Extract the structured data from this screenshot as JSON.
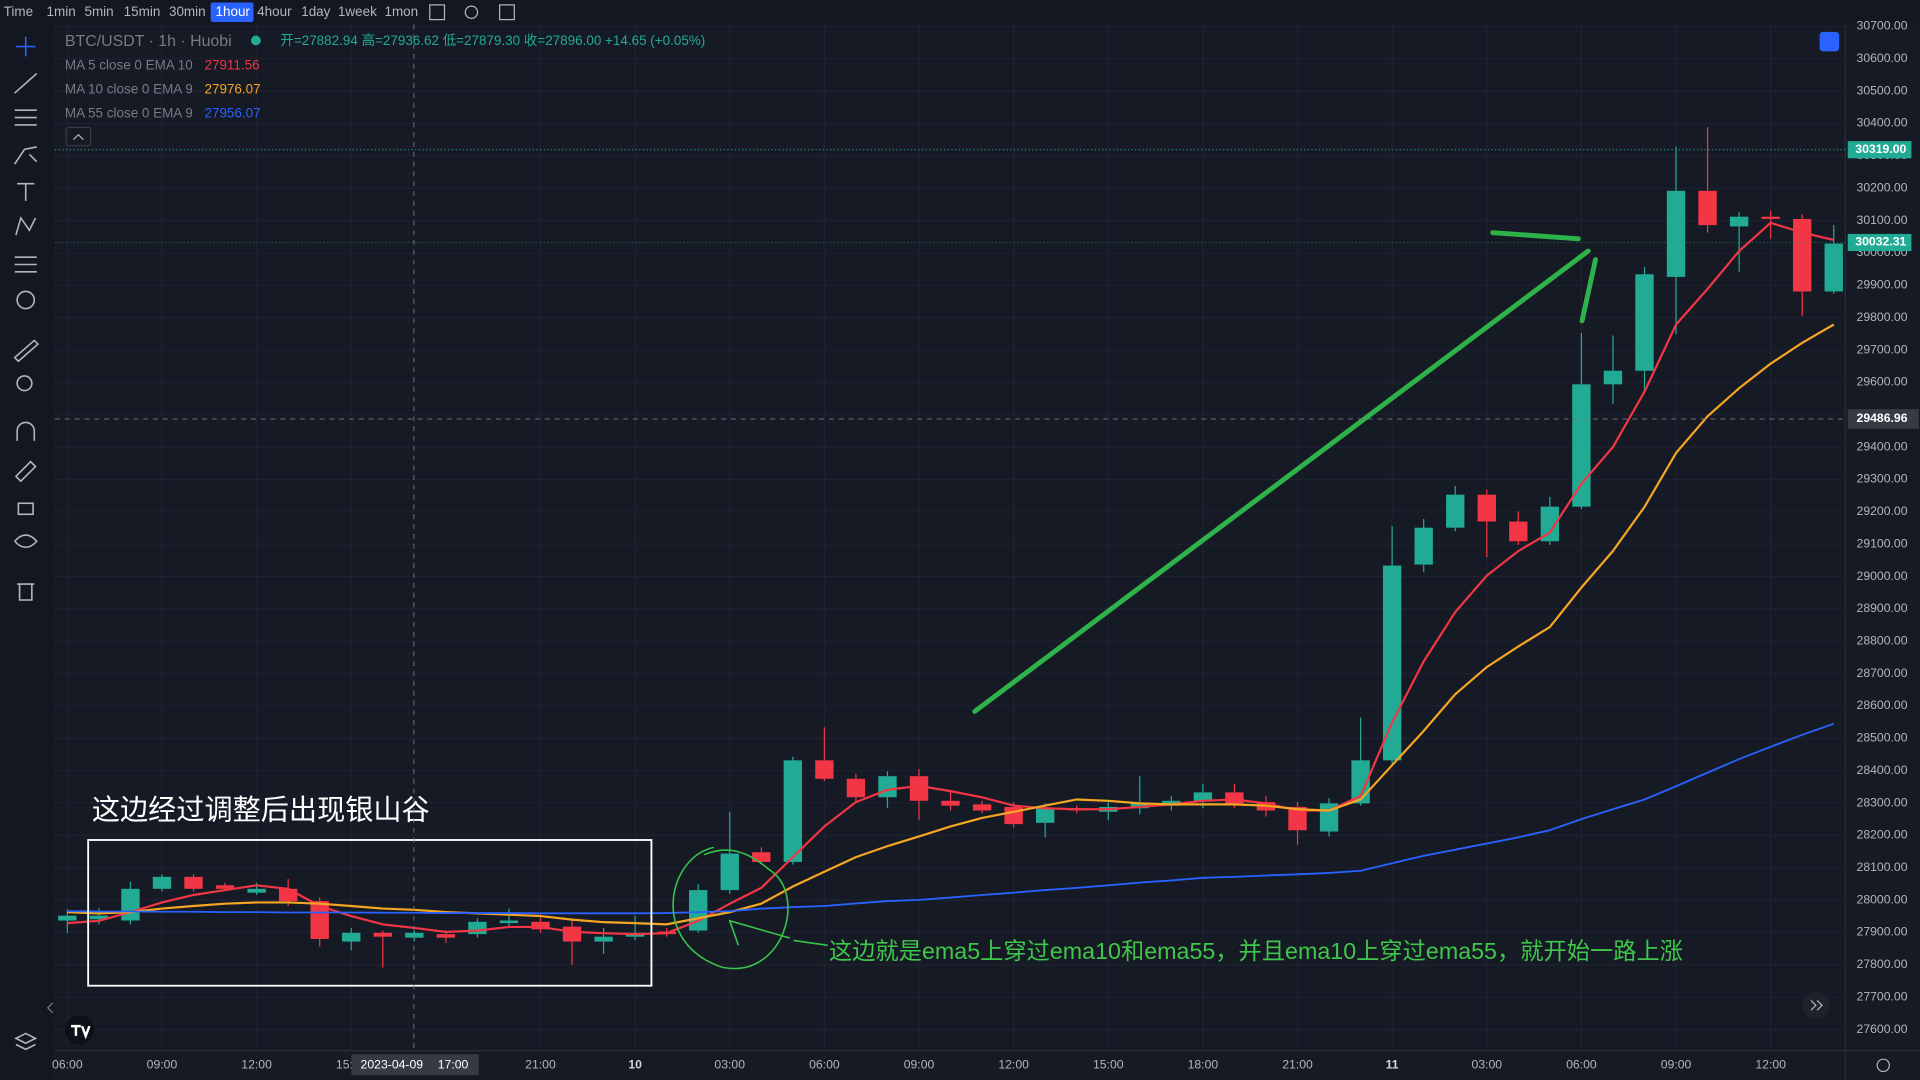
{
  "toolbar": {
    "items": [
      "Time",
      "1min",
      "5min",
      "15min",
      "30min",
      "1hour",
      "4hour",
      "1day",
      "1week",
      "1mon"
    ],
    "active": "1hour"
  },
  "chart_data": {
    "type": "candlestick",
    "symbol": "BTC/USDT · 1h · Huobi",
    "ohlc_readout": "开=27882.94 高=27936.62 低=27879.30 收=27896.00 +14.65 (+0.05%)",
    "categories": [
      "06:00",
      null,
      null,
      "09:00",
      null,
      null,
      "12:00",
      null,
      null,
      "15:00",
      null,
      null,
      null,
      null,
      null,
      "21:00",
      null,
      null,
      "10",
      null,
      null,
      "03:00",
      null,
      null,
      "06:00",
      null,
      null,
      "09:00",
      null,
      null,
      "12:00",
      null,
      null,
      "15:00",
      null,
      null,
      "18:00",
      null,
      null,
      "21:00",
      null,
      null,
      "11",
      null,
      null,
      "03:00",
      null,
      null,
      "06:00",
      null,
      null,
      "09:00",
      null,
      null,
      "12:00",
      null,
      null
    ],
    "open": [
      27937,
      27941,
      27937,
      28035,
      28072,
      28046,
      28023,
      28035,
      27997,
      27872,
      27899,
      27884,
      27895,
      27895,
      27929,
      27933,
      27918,
      27872,
      27887,
      27903,
      27906,
      28031,
      28148,
      28118,
      28432,
      28375,
      28318,
      28383,
      28307,
      28296,
      28288,
      28239,
      28284,
      28273,
      28284,
      28292,
      28307,
      28333,
      28303,
      28288,
      28212,
      28299,
      28432,
      29037,
      29151,
      29253,
      29170,
      29109,
      29216,
      29594,
      29636,
      29926,
      30192,
      30082,
      30112,
      30105,
      29881
    ],
    "high": [
      27971,
      27975,
      28057,
      28080,
      28080,
      28054,
      28054,
      28065,
      28008,
      27914,
      27906,
      27906,
      27906,
      27944,
      27974,
      27956,
      27937,
      27914,
      27952,
      27914,
      28050,
      28273,
      28163,
      28443,
      28534,
      28390,
      28398,
      28405,
      28337,
      28307,
      28303,
      28299,
      28292,
      28303,
      28383,
      28322,
      28360,
      28360,
      28322,
      28303,
      28315,
      28564,
      29156,
      29178,
      29280,
      29268,
      29201,
      29246,
      29753,
      29745,
      29957,
      30328,
      30389,
      30127,
      30131,
      30120,
      30086
    ],
    "low": [
      27899,
      27925,
      27925,
      28027,
      28027,
      28027,
      28016,
      27982,
      27857,
      27845,
      27792,
      27872,
      27868,
      27884,
      27914,
      27899,
      27800,
      27834,
      27876,
      27887,
      27899,
      28019,
      28110,
      28110,
      28368,
      28303,
      28284,
      28247,
      28277,
      28269,
      28224,
      28194,
      28269,
      28247,
      28265,
      28277,
      28284,
      28284,
      28258,
      28171,
      28197,
      28292,
      28421,
      29015,
      29140,
      29060,
      29098,
      29098,
      29208,
      29533,
      29571,
      29749,
      30063,
      29942,
      30044,
      29805,
      29873
    ],
    "close": [
      27952,
      27952,
      28035,
      28072,
      28035,
      28035,
      28035,
      27997,
      27880,
      27899,
      27887,
      27899,
      27884,
      27933,
      27937,
      27910,
      27872,
      27887,
      27899,
      27895,
      28031,
      28144,
      28118,
      28432,
      28375,
      28318,
      28383,
      28307,
      28292,
      28277,
      28235,
      28284,
      28277,
      28288,
      28299,
      28307,
      28333,
      28299,
      28277,
      28216,
      28299,
      28432,
      29034,
      29151,
      29253,
      29170,
      29109,
      29216,
      29594,
      29636,
      29934,
      30192,
      30086,
      30112,
      30105,
      29881,
      30029
    ],
    "up_color": "#22ab94",
    "down_color": "#f23645",
    "series": [
      {
        "name": "MA 5 close 0 EMA 10",
        "readout": "27911.56",
        "color": "#f23645",
        "values": [
          27929,
          27936,
          27963,
          27993,
          28016,
          28031,
          28046,
          28035,
          27982,
          27951,
          27925,
          27914,
          27902,
          27906,
          27917,
          27917,
          27902,
          27898,
          27895,
          27898,
          27936,
          27989,
          28038,
          28133,
          28228,
          28303,
          28341,
          28353,
          28337,
          28318,
          28292,
          28284,
          28281,
          28281,
          28288,
          28296,
          28307,
          28311,
          28299,
          28277,
          28277,
          28322,
          28549,
          28738,
          28890,
          29003,
          29079,
          29136,
          29287,
          29400,
          29571,
          29779,
          29889,
          30006,
          30093,
          30063,
          30040
        ]
      },
      {
        "name": "MA 10 close 0 EMA 9",
        "readout": "27976.07",
        "color": "#f5a623",
        "values": [
          27963,
          27959,
          27963,
          27974,
          27982,
          27989,
          27993,
          27993,
          27989,
          27982,
          27974,
          27970,
          27963,
          27959,
          27955,
          27951,
          27940,
          27932,
          27929,
          27925,
          27944,
          27963,
          27989,
          28042,
          28088,
          28133,
          28167,
          28197,
          28228,
          28254,
          28273,
          28292,
          28311,
          28307,
          28299,
          28296,
          28296,
          28296,
          28292,
          28281,
          28277,
          28311,
          28417,
          28523,
          28636,
          28720,
          28784,
          28844,
          28966,
          29079,
          29215,
          29382,
          29495,
          29582,
          29658,
          29722,
          29779
        ]
      },
      {
        "name": "MA 55 close 0 EMA 9",
        "readout": "27956.07",
        "color": "#2962ff",
        "values": [
          27966,
          27965,
          27965,
          27964,
          27964,
          27963,
          27963,
          27962,
          27962,
          27962,
          27961,
          27961,
          27960,
          27960,
          27960,
          27959,
          27959,
          27959,
          27959,
          27960,
          27963,
          27966,
          27974,
          27978,
          27982,
          27990,
          27997,
          28001,
          28008,
          28016,
          28023,
          28031,
          28038,
          28046,
          28054,
          28061,
          28069,
          28072,
          28076,
          28080,
          28084,
          28091,
          28114,
          28137,
          28156,
          28175,
          28194,
          28216,
          28250,
          28281,
          28311,
          28352,
          28394,
          28436,
          28474,
          28511,
          28545
        ]
      }
    ],
    "ylim": [
      27535,
      30706
    ],
    "yticks": [
      {
        "value": 27600,
        "label": "27600.00"
      },
      {
        "value": 27700,
        "label": "27700.00"
      },
      {
        "value": 27800,
        "label": "27800.00"
      },
      {
        "value": 27900,
        "label": "27900.00"
      },
      {
        "value": 28000,
        "label": "28000.00"
      },
      {
        "value": 28100,
        "label": "28100.00"
      },
      {
        "value": 28200,
        "label": "28200.00"
      },
      {
        "value": 28300,
        "label": "28300.00"
      },
      {
        "value": 28400,
        "label": "28400.00"
      },
      {
        "value": 28500,
        "label": "28500.00"
      },
      {
        "value": 28600,
        "label": "28600.00"
      },
      {
        "value": 28700,
        "label": "28700.00"
      },
      {
        "value": 28800,
        "label": "28800.00"
      },
      {
        "value": 28900,
        "label": "28900.00"
      },
      {
        "value": 29000,
        "label": "29000.00"
      },
      {
        "value": 29100,
        "label": "29100.00"
      },
      {
        "value": 29200,
        "label": "29200.00"
      },
      {
        "value": 29300,
        "label": "29300.00"
      },
      {
        "value": 29400,
        "label": "29400.00"
      },
      {
        "value": 29500,
        "label": "29500.00"
      },
      {
        "value": 29600,
        "label": "29600.00"
      },
      {
        "value": 29700,
        "label": "29700.00"
      },
      {
        "value": 29800,
        "label": "29800.00"
      },
      {
        "value": 29900,
        "label": "29900.00"
      },
      {
        "value": 30000,
        "label": "30000.00"
      },
      {
        "value": 30100,
        "label": "30100.00"
      },
      {
        "value": 30200,
        "label": "30200.00"
      },
      {
        "value": 30300,
        "label": "30300.00"
      },
      {
        "value": 30400,
        "label": "30400.00"
      },
      {
        "value": 30500,
        "label": "30500.00"
      },
      {
        "value": 30600,
        "label": "30600.00"
      },
      {
        "value": 30700,
        "label": "30700.00"
      }
    ],
    "grid": true,
    "price_markers": [
      {
        "value": 30319,
        "label": "30319.00",
        "color": "#22ab94"
      },
      {
        "value": 30032.31,
        "label": "30032.31",
        "color": "#22ab94"
      }
    ],
    "crosshair": {
      "date": "2023-04-09",
      "time": "17:00",
      "price": {
        "value": 29486.96,
        "label": "29486.96"
      }
    },
    "annotations": [
      "这边经过调整后出现银山谷",
      "这边就是ema5上穿过ema10和ema55，并且ema10上穿过ema55，就开始一路上涨"
    ]
  }
}
